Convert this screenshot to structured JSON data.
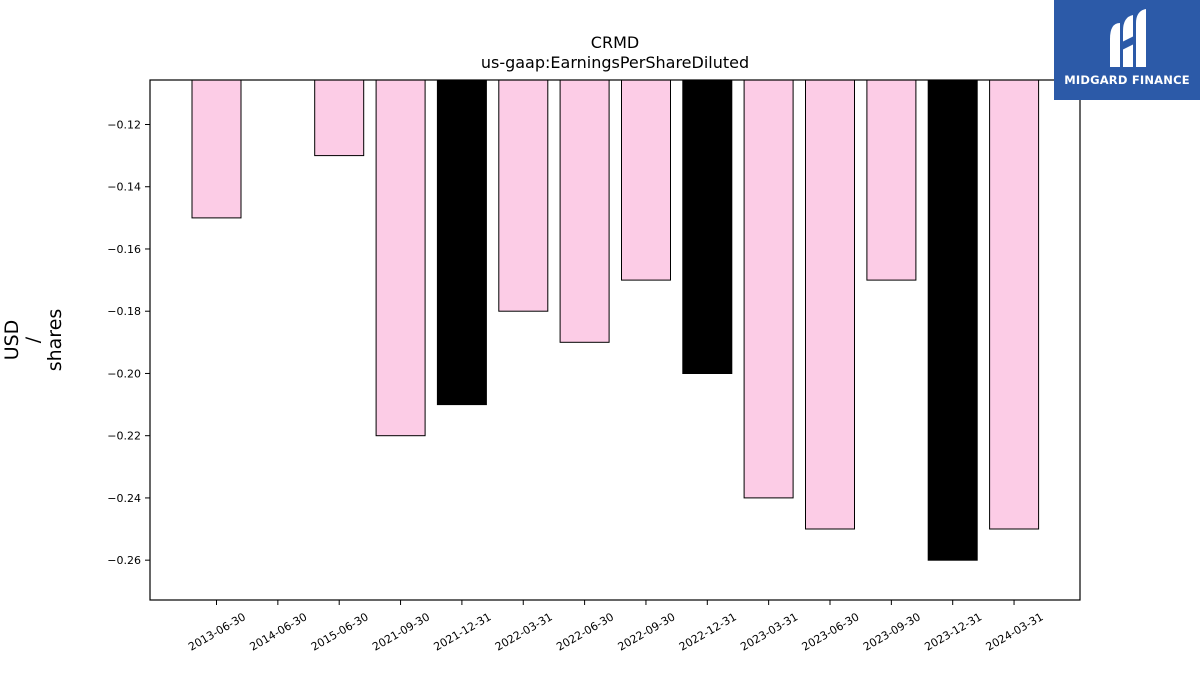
{
  "chart_data": {
    "type": "bar",
    "title": "CRMD",
    "subtitle": "us-gaap:EarningsPerShareDiluted",
    "ylabel_lines": [
      "USD",
      "/",
      "shares"
    ],
    "xlabel": "",
    "categories": [
      "2013-06-30",
      "2014-06-30",
      "2015-06-30",
      "2021-09-30",
      "2021-12-31",
      "2022-03-31",
      "2022-06-30",
      "2022-09-30",
      "2022-12-31",
      "2023-03-31",
      "2023-06-30",
      "2023-09-30",
      "2023-12-31",
      "2024-03-31"
    ],
    "values": [
      -0.15,
      null,
      -0.13,
      -0.22,
      -0.21,
      -0.18,
      -0.19,
      -0.17,
      -0.2,
      -0.24,
      -0.25,
      -0.17,
      -0.26,
      -0.25
    ],
    "bar_colors": [
      "#fccce6",
      "#fccce6",
      "#fccce6",
      "#fccce6",
      "#000000",
      "#fccce6",
      "#fccce6",
      "#fccce6",
      "#000000",
      "#fccce6",
      "#fccce6",
      "#fccce6",
      "#000000",
      "#fccce6"
    ],
    "ylim": [
      -0.2728,
      -0.1057
    ],
    "yticks": [
      -0.12,
      -0.14,
      -0.16,
      -0.18,
      -0.2,
      -0.22,
      -0.24,
      -0.26
    ],
    "ytick_labels": [
      "−0.12",
      "−0.14",
      "−0.16",
      "−0.18",
      "−0.20",
      "−0.22",
      "−0.24",
      "−0.26"
    ],
    "grid": false,
    "legend": "none"
  },
  "logo": {
    "text": "MIDGARD FINANCE",
    "background": "#2c5aa8",
    "icon": "midgard-m-logo-icon"
  }
}
